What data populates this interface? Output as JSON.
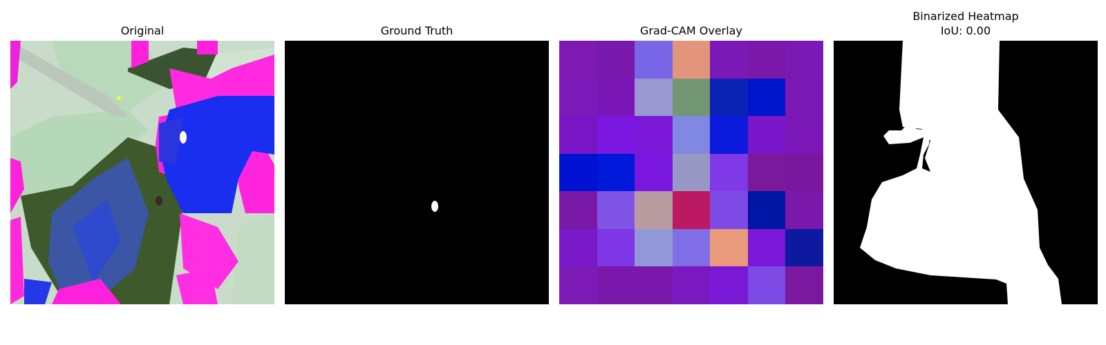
{
  "panels": {
    "original": {
      "title": "Original"
    },
    "ground_truth": {
      "title": "Ground Truth"
    },
    "gradcam": {
      "title": "Grad-CAM Overlay",
      "grid_colors": [
        [
          "#7e1ab3",
          "#771aac",
          "#7966e6",
          "#e3957c",
          "#7a19b6",
          "#7a19a9",
          "#7a19b3"
        ],
        [
          "#7b1ab9",
          "#7a15b6",
          "#9a98d1",
          "#739774",
          "#0b23b3",
          "#0016cc",
          "#7a18b6"
        ],
        [
          "#7915c4",
          "#7a17e0",
          "#7b17d9",
          "#8088e1",
          "#0c1adb",
          "#7a16c9",
          "#7a17b6"
        ],
        [
          "#0012d1",
          "#0018d9",
          "#7a17df",
          "#9898c4",
          "#8039e6",
          "#7a199b",
          "#7a179f"
        ],
        [
          "#7a19a8",
          "#7f53e6",
          "#b89b9f",
          "#bb1a63",
          "#7e4ae6",
          "#0016a5",
          "#7a18ac"
        ],
        [
          "#7a19c8",
          "#7e36e6",
          "#9399d8",
          "#7f6ee6",
          "#e99a7a",
          "#7a17d9",
          "#0d199f"
        ],
        [
          "#7e1ab6",
          "#7a18ac",
          "#7a18ac",
          "#7a19c0",
          "#7a19d5",
          "#7d4ae6",
          "#7a199f"
        ]
      ]
    },
    "binarized": {
      "title_line1": "Binarized Heatmap",
      "title_line2": "IoU: 0.00"
    }
  }
}
